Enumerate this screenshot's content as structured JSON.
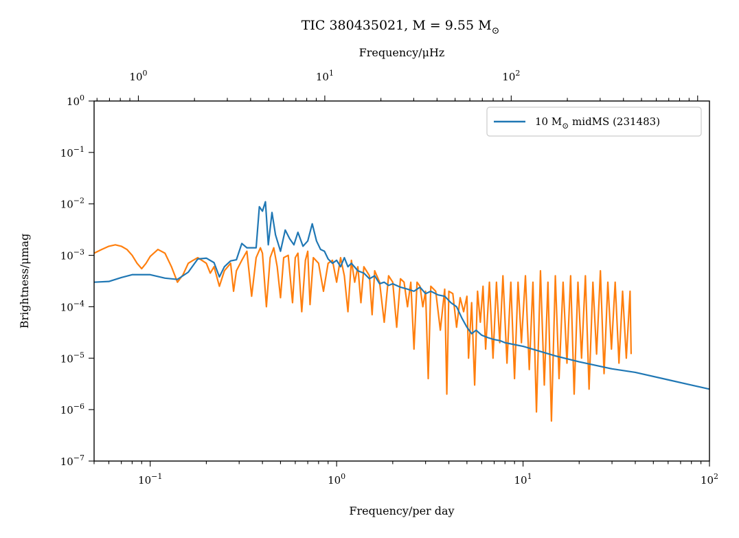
{
  "chart_data": {
    "type": "line",
    "title": "TIC 380435021, M = 9.55 M",
    "title_sub": "⊙",
    "xlabel": "Frequency/per day",
    "x2label": "Frequency/μHz",
    "ylabel": "Brightness/μmag",
    "x_scale": "log",
    "y_scale": "log",
    "xlim": [
      0.05,
      100
    ],
    "ylim": [
      1e-07,
      1
    ],
    "x2lim": [
      0.5787,
      1157.4
    ],
    "grid": false,
    "legend_position": "top-right",
    "x_ticks": [
      {
        "value": 0.1,
        "base": "10",
        "exp": "−1"
      },
      {
        "value": 1,
        "base": "10",
        "exp": "0"
      },
      {
        "value": 10,
        "base": "10",
        "exp": "1"
      },
      {
        "value": 100,
        "base": "10",
        "exp": "2"
      }
    ],
    "x2_ticks": [
      {
        "value": 1,
        "base": "10",
        "exp": "0"
      },
      {
        "value": 10,
        "base": "10",
        "exp": "1"
      },
      {
        "value": 100,
        "base": "10",
        "exp": "2"
      }
    ],
    "y_ticks": [
      {
        "value": 1,
        "base": "10",
        "exp": "0"
      },
      {
        "value": 0.1,
        "base": "10",
        "exp": "−1"
      },
      {
        "value": 0.01,
        "base": "10",
        "exp": "−2"
      },
      {
        "value": 0.001,
        "base": "10",
        "exp": "−3"
      },
      {
        "value": 0.0001,
        "base": "10",
        "exp": "−4"
      },
      {
        "value": 1e-05,
        "base": "10",
        "exp": "−5"
      },
      {
        "value": 1e-06,
        "base": "10",
        "exp": "−6"
      },
      {
        "value": 1e-07,
        "base": "10",
        "exp": "−7"
      }
    ],
    "series": [
      {
        "name": "10 M⊙ midMS (231483)",
        "legend_pre": "10 M",
        "legend_sub": "⊙",
        "legend_post": " midMS (231483)",
        "color": "#1f77b4",
        "points": [
          [
            0.05,
            0.0003
          ],
          [
            0.06,
            0.00031
          ],
          [
            0.07,
            0.00037
          ],
          [
            0.08,
            0.00042
          ],
          [
            0.1,
            0.00042
          ],
          [
            0.12,
            0.00036
          ],
          [
            0.14,
            0.00034
          ],
          [
            0.16,
            0.00047
          ],
          [
            0.18,
            0.00085
          ],
          [
            0.2,
            0.00088
          ],
          [
            0.22,
            0.00072
          ],
          [
            0.235,
            0.00038
          ],
          [
            0.25,
            0.0006
          ],
          [
            0.27,
            0.00078
          ],
          [
            0.29,
            0.00082
          ],
          [
            0.31,
            0.0017
          ],
          [
            0.33,
            0.0014
          ],
          [
            0.35,
            0.0014
          ],
          [
            0.37,
            0.0014
          ],
          [
            0.385,
            0.0088
          ],
          [
            0.4,
            0.0072
          ],
          [
            0.415,
            0.011
          ],
          [
            0.43,
            0.0016
          ],
          [
            0.45,
            0.0068
          ],
          [
            0.47,
            0.0025
          ],
          [
            0.5,
            0.0012
          ],
          [
            0.53,
            0.0031
          ],
          [
            0.56,
            0.0021
          ],
          [
            0.59,
            0.0016
          ],
          [
            0.62,
            0.0028
          ],
          [
            0.66,
            0.0015
          ],
          [
            0.7,
            0.0019
          ],
          [
            0.74,
            0.0041
          ],
          [
            0.78,
            0.0019
          ],
          [
            0.82,
            0.0013
          ],
          [
            0.86,
            0.0012
          ],
          [
            0.9,
            0.00085
          ],
          [
            0.95,
            0.0007
          ],
          [
            1.0,
            0.0008
          ],
          [
            1.05,
            0.0006
          ],
          [
            1.1,
            0.0009
          ],
          [
            1.15,
            0.0006
          ],
          [
            1.2,
            0.0007
          ],
          [
            1.3,
            0.0005
          ],
          [
            1.4,
            0.00045
          ],
          [
            1.5,
            0.00035
          ],
          [
            1.6,
            0.0004
          ],
          [
            1.7,
            0.00028
          ],
          [
            1.8,
            0.0003
          ],
          [
            1.9,
            0.00026
          ],
          [
            2.0,
            0.00028
          ],
          [
            2.2,
            0.00024
          ],
          [
            2.4,
            0.00022
          ],
          [
            2.6,
            0.0002
          ],
          [
            2.8,
            0.00024
          ],
          [
            3.0,
            0.00018
          ],
          [
            3.2,
            0.0002
          ],
          [
            3.5,
            0.00017
          ],
          [
            3.8,
            0.00016
          ],
          [
            4.1,
            0.00012
          ],
          [
            4.4,
            0.0001
          ],
          [
            4.7,
            6e-05
          ],
          [
            5.0,
            4e-05
          ],
          [
            5.3,
            3e-05
          ],
          [
            5.6,
            3.5e-05
          ],
          [
            6.0,
            2.8e-05
          ],
          [
            6.5,
            2.5e-05
          ],
          [
            7.0,
            2.3e-05
          ],
          [
            7.5,
            2.2e-05
          ],
          [
            8.0,
            2e-05
          ],
          [
            10,
            1.7e-05
          ],
          [
            15,
            1.1e-05
          ],
          [
            20,
            8.5e-06
          ],
          [
            30,
            6.2e-06
          ],
          [
            40,
            5.3e-06
          ],
          [
            60,
            3.8e-06
          ],
          [
            80,
            3e-06
          ],
          [
            100,
            2.5e-06
          ]
        ]
      },
      {
        "name": "",
        "color": "#ff7f0e",
        "points": [
          [
            0.05,
            0.0011
          ],
          [
            0.055,
            0.0013
          ],
          [
            0.06,
            0.0015
          ],
          [
            0.065,
            0.0016
          ],
          [
            0.07,
            0.0015
          ],
          [
            0.075,
            0.0013
          ],
          [
            0.08,
            0.001
          ],
          [
            0.085,
            0.0007
          ],
          [
            0.09,
            0.00055
          ],
          [
            0.095,
            0.0007
          ],
          [
            0.1,
            0.00095
          ],
          [
            0.11,
            0.0013
          ],
          [
            0.12,
            0.0011
          ],
          [
            0.13,
            0.0006
          ],
          [
            0.14,
            0.0003
          ],
          [
            0.15,
            0.00042
          ],
          [
            0.16,
            0.0007
          ],
          [
            0.17,
            0.0008
          ],
          [
            0.18,
            0.0009
          ],
          [
            0.2,
            0.0007
          ],
          [
            0.21,
            0.00045
          ],
          [
            0.22,
            0.0006
          ],
          [
            0.235,
            0.00025
          ],
          [
            0.25,
            0.0005
          ],
          [
            0.27,
            0.0007
          ],
          [
            0.28,
            0.0002
          ],
          [
            0.29,
            0.0005
          ],
          [
            0.31,
            0.0008
          ],
          [
            0.33,
            0.0012
          ],
          [
            0.35,
            0.00016
          ],
          [
            0.37,
            0.0009
          ],
          [
            0.39,
            0.0014
          ],
          [
            0.4,
            0.0011
          ],
          [
            0.42,
            0.0001
          ],
          [
            0.44,
            0.0009
          ],
          [
            0.46,
            0.0014
          ],
          [
            0.48,
            0.0006
          ],
          [
            0.5,
            0.00015
          ],
          [
            0.52,
            0.0009
          ],
          [
            0.55,
            0.001
          ],
          [
            0.58,
            0.00012
          ],
          [
            0.6,
            0.0009
          ],
          [
            0.62,
            0.0011
          ],
          [
            0.65,
            8e-05
          ],
          [
            0.68,
            0.0008
          ],
          [
            0.7,
            0.0012
          ],
          [
            0.72,
            0.00011
          ],
          [
            0.75,
            0.0009
          ],
          [
            0.8,
            0.0007
          ],
          [
            0.85,
            0.0002
          ],
          [
            0.9,
            0.0007
          ],
          [
            0.95,
            0.0008
          ],
          [
            1.0,
            0.0003
          ],
          [
            1.05,
            0.0009
          ],
          [
            1.1,
            0.0004
          ],
          [
            1.15,
            8e-05
          ],
          [
            1.2,
            0.0008
          ],
          [
            1.25,
            0.0003
          ],
          [
            1.3,
            0.0006
          ],
          [
            1.35,
            0.00012
          ],
          [
            1.4,
            0.0006
          ],
          [
            1.5,
            0.0004
          ],
          [
            1.55,
            7e-05
          ],
          [
            1.6,
            0.0005
          ],
          [
            1.7,
            0.0003
          ],
          [
            1.8,
            5e-05
          ],
          [
            1.9,
            0.0004
          ],
          [
            2.0,
            0.0003
          ],
          [
            2.1,
            4e-05
          ],
          [
            2.2,
            0.00035
          ],
          [
            2.3,
            0.0003
          ],
          [
            2.4,
            0.0001
          ],
          [
            2.5,
            0.0003
          ],
          [
            2.6,
            1.5e-05
          ],
          [
            2.7,
            0.0003
          ],
          [
            2.8,
            0.00025
          ],
          [
            2.9,
            0.0001
          ],
          [
            3.0,
            0.0002
          ],
          [
            3.1,
            4e-06
          ],
          [
            3.2,
            0.00025
          ],
          [
            3.4,
            0.0002
          ],
          [
            3.6,
            3.5e-05
          ],
          [
            3.8,
            0.00022
          ],
          [
            3.9,
            2e-06
          ],
          [
            4.0,
            0.0002
          ],
          [
            4.2,
            0.00018
          ],
          [
            4.4,
            4e-05
          ],
          [
            4.6,
            0.00015
          ],
          [
            4.8,
            8e-05
          ],
          [
            5.0,
            0.00016
          ],
          [
            5.1,
            1e-05
          ],
          [
            5.3,
            0.00012
          ],
          [
            5.5,
            3e-06
          ],
          [
            5.7,
            0.0002
          ],
          [
            5.9,
            5e-05
          ],
          [
            6.1,
            0.00025
          ],
          [
            6.3,
            1.5e-05
          ],
          [
            6.6,
            0.0003
          ],
          [
            6.9,
            1e-05
          ],
          [
            7.2,
            0.0003
          ],
          [
            7.5,
            2e-05
          ],
          [
            7.8,
            0.0004
          ],
          [
            8.2,
            8e-06
          ],
          [
            8.6,
            0.0003
          ],
          [
            9.0,
            4e-06
          ],
          [
            9.4,
            0.0003
          ],
          [
            9.8,
            2e-05
          ],
          [
            10.3,
            0.0004
          ],
          [
            10.8,
            6e-06
          ],
          [
            11.3,
            0.0003
          ],
          [
            11.8,
            9e-07
          ],
          [
            12.4,
            0.0005
          ],
          [
            13.0,
            3e-06
          ],
          [
            13.6,
            0.0003
          ],
          [
            14.2,
            6e-07
          ],
          [
            14.9,
            0.0004
          ],
          [
            15.6,
            4e-06
          ],
          [
            16.4,
            0.0003
          ],
          [
            17.2,
            8e-06
          ],
          [
            18.0,
            0.0004
          ],
          [
            18.8,
            2e-06
          ],
          [
            19.7,
            0.0003
          ],
          [
            20.6,
            1e-05
          ],
          [
            21.6,
            0.0004
          ],
          [
            22.6,
            2.5e-06
          ],
          [
            23.7,
            0.0003
          ],
          [
            24.8,
            1.2e-05
          ],
          [
            26.0,
            0.0005
          ],
          [
            27.2,
            5e-06
          ],
          [
            28.5,
            0.0003
          ],
          [
            29.8,
            1.5e-05
          ],
          [
            31.2,
            0.0003
          ],
          [
            32.7,
            8e-06
          ],
          [
            34.2,
            0.0002
          ],
          [
            35.8,
            1e-05
          ],
          [
            37.5,
            0.0002
          ],
          [
            38.0,
            1.2e-05
          ]
        ]
      }
    ]
  }
}
